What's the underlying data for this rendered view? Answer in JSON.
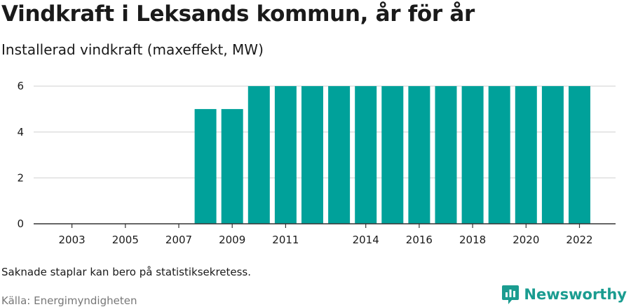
{
  "header": {
    "title": "Vindkraft i Leksands kommun, år för år",
    "subtitle": "Installerad vindkraft (maxeffekt, MW)"
  },
  "footer": {
    "note": "Saknade staplar kan bero på statistiksekretess.",
    "source": "Källa: Energimyndigheten",
    "brand": "Newsworthy"
  },
  "colors": {
    "bar": "#00a19a",
    "brand": "#1a9c90",
    "grid": "#d9d9d9",
    "axis": "#333333"
  },
  "icons": {
    "brand_logo": "bar-chart-speech-bubble-icon"
  },
  "chart_data": {
    "type": "bar",
    "title": "Vindkraft i Leksands kommun, år för år",
    "subtitle": "Installerad vindkraft (maxeffekt, MW)",
    "categories": [
      "2002",
      "2003",
      "2004",
      "2005",
      "2006",
      "2007",
      "2008",
      "2009",
      "2010",
      "2011",
      "2012",
      "2013",
      "2014",
      "2015",
      "2016",
      "2017",
      "2018",
      "2019",
      "2020",
      "2021",
      "2022"
    ],
    "values": [
      null,
      null,
      null,
      null,
      null,
      null,
      5,
      5,
      6,
      6,
      6,
      6,
      6,
      6,
      6,
      6,
      6,
      6,
      6,
      6,
      6
    ],
    "x_tick_labels": [
      "2003",
      "2005",
      "2007",
      "2009",
      "2011",
      "2014",
      "2016",
      "2018",
      "2020",
      "2022"
    ],
    "y_ticks": [
      0,
      2,
      4,
      6
    ],
    "ylim": [
      0,
      6.4
    ],
    "grid": true,
    "legend": "none"
  }
}
